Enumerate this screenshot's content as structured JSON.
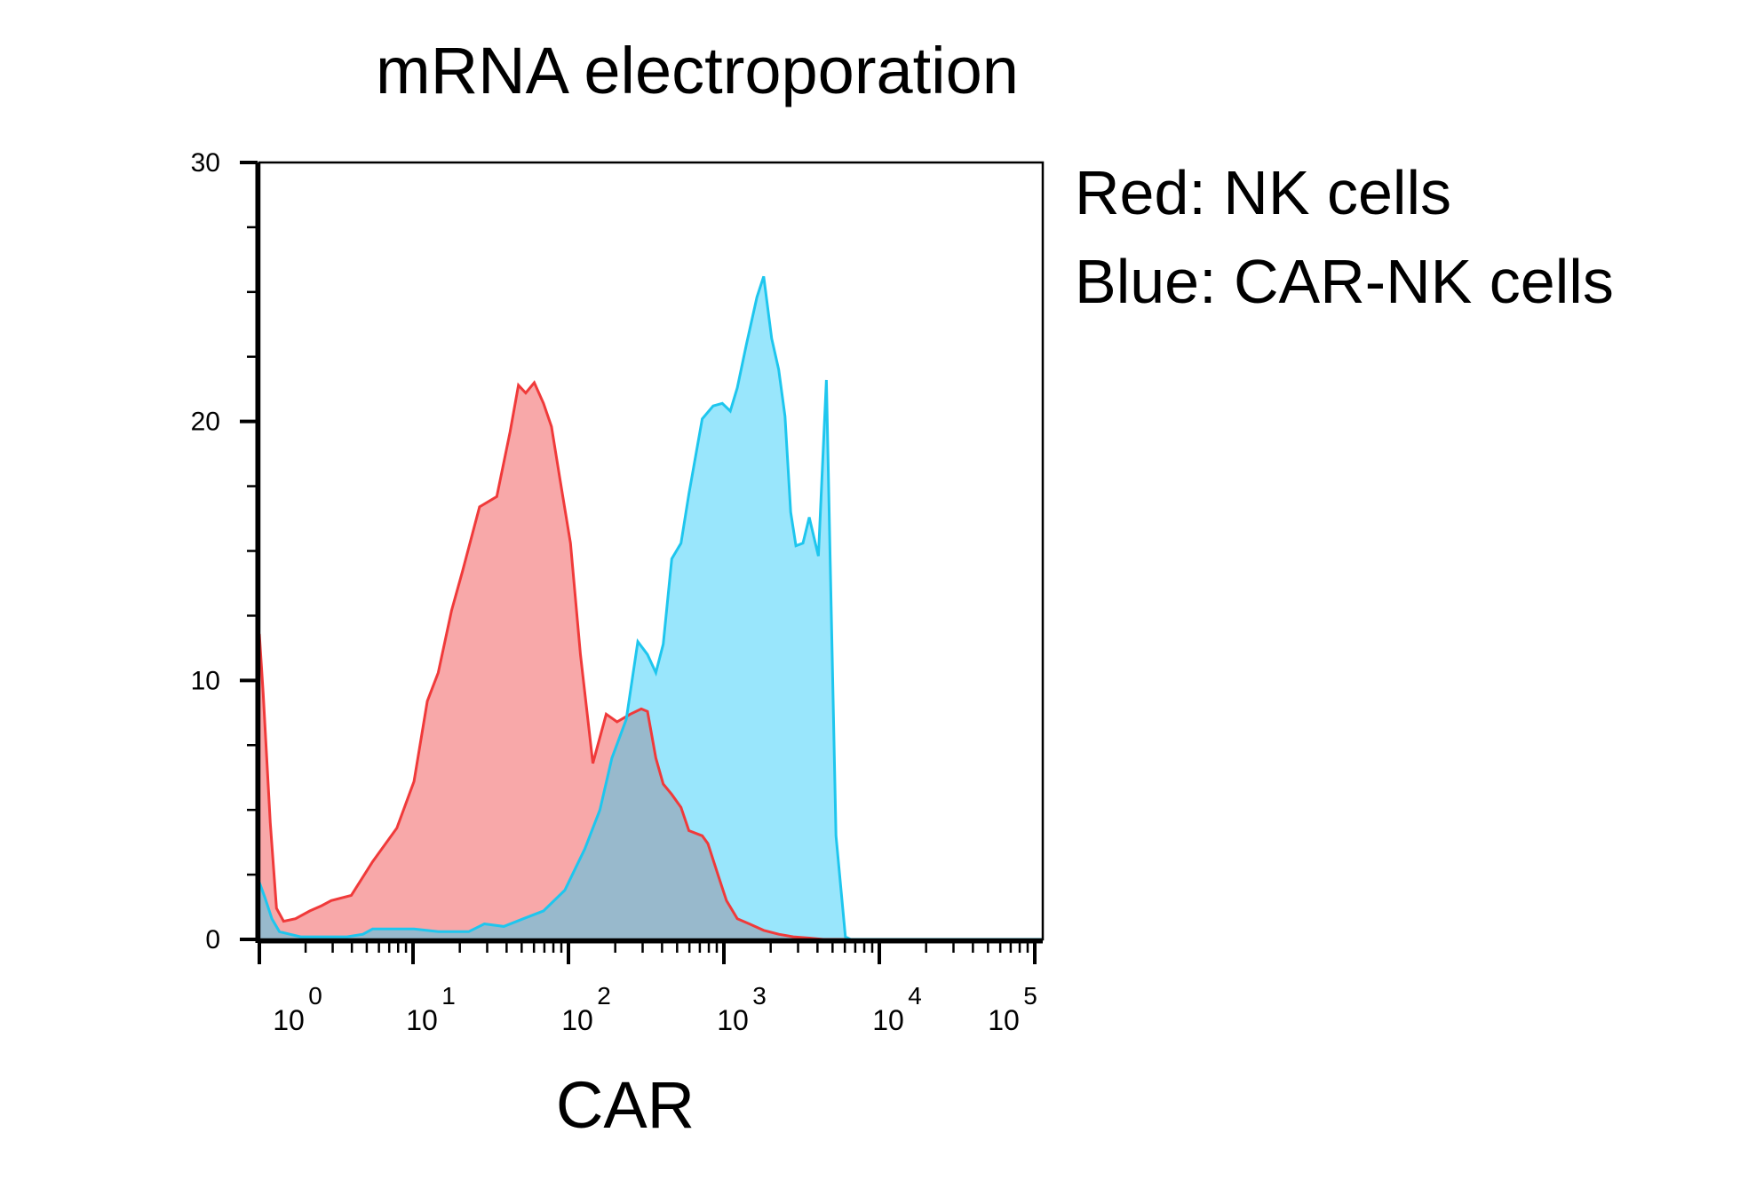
{
  "chart_data": {
    "type": "area",
    "title": "mRNA electroporation",
    "xlabel": "CAR",
    "ylabel": "",
    "x_scale": "log",
    "xlim": [
      0.3,
      150000
    ],
    "ylim": [
      0,
      30
    ],
    "yticks": [
      0,
      10,
      20,
      30
    ],
    "xticks": [
      {
        "base": "10",
        "exp": "0",
        "value": 1
      },
      {
        "base": "10",
        "exp": "1",
        "value": 10
      },
      {
        "base": "10",
        "exp": "2",
        "value": 100
      },
      {
        "base": "10",
        "exp": "3",
        "value": 1000
      },
      {
        "base": "10",
        "exp": "4",
        "value": 10000
      },
      {
        "base": "10",
        "exp": "5",
        "value": 100000
      }
    ],
    "legend_text": [
      "Red: NK cells",
      "Blue: CAR-NK cells"
    ],
    "series": [
      {
        "name": "NK cells",
        "stroke": "#f03a3a",
        "fill": "#f47f80",
        "x": [
          0.3,
          0.32,
          0.36,
          0.4,
          0.45,
          0.55,
          0.7,
          0.85,
          1.0,
          1.4,
          2.0,
          3.0,
          4.0,
          5.0,
          6.0,
          7.5,
          9.0,
          12,
          16,
          20,
          23,
          26,
          30,
          35,
          40,
          46,
          55,
          65,
          80,
          100,
          120,
          150,
          180,
          200,
          230,
          260,
          300,
          350,
          400,
          500,
          550,
          650,
          750,
          900,
          1100,
          1400,
          1800,
          2300,
          3000,
          3800,
          5000,
          6500,
          8000,
          10000,
          12000,
          15000,
          20000,
          30000,
          50000,
          100000,
          150000
        ],
        "values": [
          11.8,
          9.5,
          4.5,
          1.2,
          0.7,
          0.8,
          1.1,
          1.3,
          1.5,
          1.7,
          3.0,
          4.3,
          6.1,
          9.2,
          10.3,
          12.7,
          14.2,
          16.7,
          17.1,
          19.6,
          21.4,
          21.1,
          21.5,
          20.7,
          19.8,
          17.8,
          15.3,
          11.0,
          6.8,
          8.7,
          8.4,
          8.7,
          8.9,
          8.8,
          7.0,
          6.0,
          5.6,
          5.1,
          4.2,
          4.0,
          3.7,
          2.5,
          1.5,
          0.8,
          0.6,
          0.35,
          0.2,
          0.1,
          0.05,
          0.0,
          0.0,
          0.0,
          0.0,
          0.0,
          0.0,
          0.0,
          0.0,
          0.0,
          0.0,
          0.0,
          0.0
        ]
      },
      {
        "name": "CAR-NK cells",
        "stroke": "#1ec6ee",
        "fill": "#80e0fb",
        "x": [
          0.3,
          0.33,
          0.37,
          0.42,
          0.5,
          0.6,
          0.8,
          1.0,
          1.3,
          1.7,
          2.0,
          3.0,
          4.0,
          6.0,
          8.0,
          10,
          13,
          18,
          25,
          35,
          50,
          70,
          90,
          110,
          140,
          170,
          200,
          230,
          260,
          300,
          350,
          400,
          500,
          600,
          700,
          800,
          900,
          1050,
          1250,
          1400,
          1600,
          1800,
          2000,
          2200,
          2400,
          2700,
          3000,
          3500,
          4000,
          4700,
          5500,
          6000,
          6500,
          7000,
          8000,
          9000,
          11000,
          13000,
          16000,
          20000,
          40000,
          100000,
          150000
        ],
        "values": [
          2.2,
          1.6,
          0.8,
          0.3,
          0.2,
          0.1,
          0.1,
          0.1,
          0.1,
          0.2,
          0.4,
          0.4,
          0.4,
          0.3,
          0.3,
          0.3,
          0.6,
          0.5,
          0.8,
          1.1,
          1.9,
          3.5,
          5.0,
          7.0,
          8.5,
          11.5,
          11.0,
          10.3,
          11.4,
          14.7,
          15.3,
          17.2,
          20.1,
          20.6,
          20.7,
          20.4,
          21.3,
          23.0,
          24.8,
          25.6,
          23.2,
          22.0,
          20.2,
          16.5,
          15.2,
          15.3,
          16.3,
          14.8,
          21.6,
          4.0,
          0.1,
          0.0,
          0.0,
          0.0,
          0.0,
          0.0,
          0.0,
          0.0,
          0.0,
          0.0,
          0.0,
          0.0,
          0.0
        ]
      }
    ],
    "overlap_fill": "#98b9cc",
    "overlap_stroke": "#8a7f8c",
    "grid": false,
    "legend_position": "right"
  }
}
